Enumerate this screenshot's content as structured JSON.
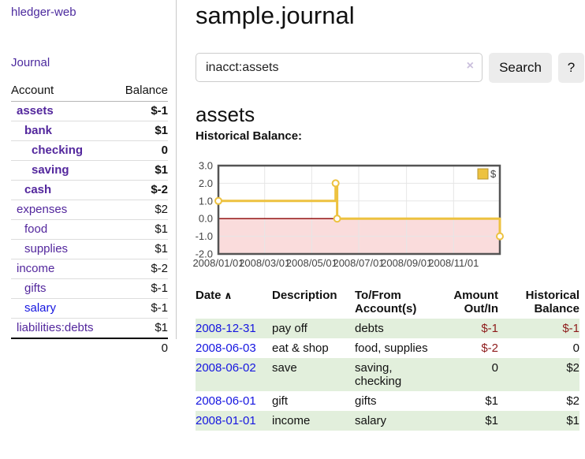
{
  "sidebar": {
    "brand": "hledger-web",
    "journal_link": "Journal",
    "accounts_header": {
      "account": "Account",
      "balance": "Balance"
    },
    "accounts": [
      {
        "name": "assets",
        "indent": 1,
        "bold": true,
        "balance": "$-1",
        "negative": "neg-strong"
      },
      {
        "name": "bank",
        "indent": 2,
        "bold": true,
        "balance": "$1",
        "negative": ""
      },
      {
        "name": "checking",
        "indent": 3,
        "bold": true,
        "balance": "0",
        "negative": ""
      },
      {
        "name": "saving",
        "indent": 3,
        "bold": true,
        "balance": "$1",
        "negative": ""
      },
      {
        "name": "cash",
        "indent": 2,
        "bold": true,
        "balance": "$-2",
        "negative": "neg-strong"
      },
      {
        "name": "expenses",
        "indent": 1,
        "bold": false,
        "balance": "$2",
        "negative": ""
      },
      {
        "name": "food",
        "indent": 2,
        "bold": false,
        "balance": "$1",
        "negative": ""
      },
      {
        "name": "supplies",
        "indent": 2,
        "bold": false,
        "balance": "$1",
        "negative": ""
      },
      {
        "name": "income",
        "indent": 1,
        "bold": false,
        "balance": "$-2",
        "negative": "neg-soft"
      },
      {
        "name": "gifts",
        "indent": 2,
        "bold": false,
        "balance": "$-1",
        "negative": "neg-soft"
      },
      {
        "name": "salary",
        "indent": 2,
        "bold": false,
        "blue": true,
        "balance": "$-1",
        "negative": "neg-soft"
      },
      {
        "name": "liabilities:debts",
        "indent": 1,
        "bold": false,
        "balance": "$1",
        "negative": ""
      }
    ],
    "total": "0"
  },
  "main": {
    "title": "sample.journal",
    "search": {
      "value": "inacct:assets",
      "clear_icon": "×",
      "button_label": "Search",
      "help_label": "?"
    },
    "account_heading": "assets",
    "chart_label": "Historical Balance:",
    "table": {
      "sort_icon": "∧",
      "columns": [
        {
          "key": "date",
          "label": "Date",
          "align": "left",
          "sorted": "asc"
        },
        {
          "key": "description",
          "label": "Description",
          "align": "left"
        },
        {
          "key": "accounts",
          "label": "To/From Account(s)",
          "align": "left"
        },
        {
          "key": "amount",
          "label": "Amount Out/In",
          "align": "right"
        },
        {
          "key": "balance",
          "label": "Historical Balance",
          "align": "right"
        }
      ],
      "rows": [
        {
          "date": "2008-12-31",
          "description": "pay off",
          "accounts": "debts",
          "amount": "$-1",
          "amount_negative": true,
          "balance": "$-1",
          "balance_negative": true
        },
        {
          "date": "2008-06-03",
          "description": "eat & shop",
          "accounts": "food, supplies",
          "amount": "$-2",
          "amount_negative": true,
          "balance": "0",
          "balance_negative": false
        },
        {
          "date": "2008-06-02",
          "description": "save",
          "accounts": "saving, checking",
          "amount": "0",
          "amount_negative": false,
          "balance": "$2",
          "balance_negative": false
        },
        {
          "date": "2008-06-01",
          "description": "gift",
          "accounts": "gifts",
          "amount": "$1",
          "amount_negative": false,
          "balance": "$2",
          "balance_negative": false
        },
        {
          "date": "2008-01-01",
          "description": "income",
          "accounts": "salary",
          "amount": "$1",
          "amount_negative": false,
          "balance": "$1",
          "balance_negative": false
        }
      ]
    }
  },
  "chart_data": {
    "type": "line",
    "step": true,
    "title": "Historical Balance",
    "series": [
      {
        "name": "$",
        "color": "#edc240",
        "points": [
          [
            "2008-01-01",
            1
          ],
          [
            "2008-06-01",
            2
          ],
          [
            "2008-06-03",
            0
          ],
          [
            "2008-12-31",
            -1
          ]
        ]
      }
    ],
    "x_domain": [
      "2008-01-01",
      "2008-12-31"
    ],
    "x_ticks": [
      "2008/01/01",
      "2008/03/01",
      "2008/05/01",
      "2008/07/01",
      "2008/09/01",
      "2008/11/01"
    ],
    "y_ticks": [
      3.0,
      2.0,
      1.0,
      0.0,
      -1.0,
      -2.0
    ],
    "ylim": [
      -2,
      3
    ],
    "grid": true,
    "legend_position": "top-right",
    "negative_region_color": "#fadcdc",
    "zero_line_color": "#8b0000",
    "border_color": "#545454",
    "grid_color": "#e6e6e6"
  },
  "colors": {
    "purple_link": "#4c2a9e",
    "blue_link": "#1515e0",
    "negative_strong": "#8e1b1b",
    "negative_soft": "#b56868",
    "row_highlight_green": "#e2efdc",
    "series_gold": "#edc240"
  }
}
